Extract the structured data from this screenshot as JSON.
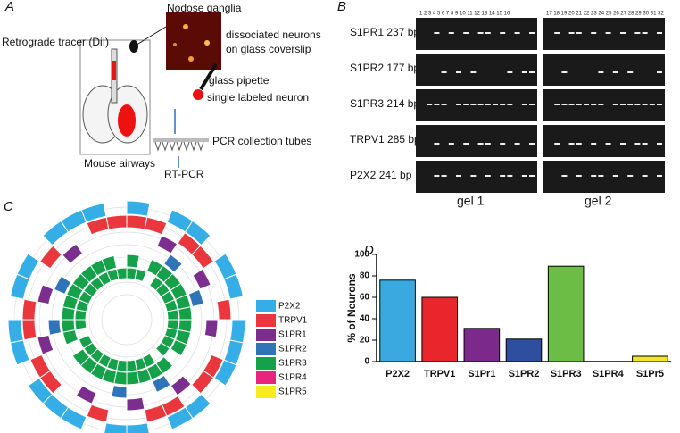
{
  "panel_a": {
    "label": "A",
    "nodose": "Nodose ganglia",
    "dissociated": "dissociated neurons",
    "coverslip": "on glass coverslip",
    "tracer": "Retrograde tracer (DiI)",
    "pipette": "glass pipette",
    "single": "single labeled neuron",
    "tubes": "PCR collection tubes",
    "airways": "Mouse airways",
    "rtpcr": "RT-PCR"
  },
  "panel_b": {
    "label": "B",
    "rows": [
      "S1PR1 237 bp",
      "S1PR2 177 bp",
      "S1PR3 214 bp",
      "TRPV1  285 bp",
      "P2X2   241 bp"
    ],
    "lanes_gel1": "1 2 3 4 5 6 7 8 9 10 11 12 13 14 15 16",
    "lanes_gel2": "17 18 19 20 21 22 23 24 25 26 27 28 29 30 31 32",
    "gel1": "gel 1",
    "gel2": "gel 2"
  },
  "panel_c": {
    "label": "C",
    "legend": [
      {
        "name": "P2X2",
        "color": "#35ade6"
      },
      {
        "name": "TRPV1",
        "color": "#e9373d"
      },
      {
        "name": "S1PR1",
        "color": "#7b2e8e"
      },
      {
        "name": "S1PR2",
        "color": "#2f73b8"
      },
      {
        "name": "S1PR3",
        "color": "#14a14a"
      },
      {
        "name": "S1PR4",
        "color": "#e8247d"
      },
      {
        "name": "S1PR5",
        "color": "#f6ec1e"
      }
    ]
  },
  "chart_data": {
    "type": "bar",
    "panel_label": "D",
    "y_label": "% of Neurons",
    "categories": [
      "P2X2",
      "TRPV1",
      "S1Pr1",
      "S1PR2",
      "S1PR3",
      "S1PR4",
      "S1Pr5"
    ],
    "values": [
      76,
      60,
      31,
      21,
      89,
      0,
      5
    ],
    "colors": [
      "#3aa9e0",
      "#e8262b",
      "#7b2a8c",
      "#2e4f9e",
      "#6cbd45",
      "#e8247d",
      "#f2e524"
    ],
    "ylim": [
      0,
      100
    ],
    "yticks": [
      0,
      20,
      40,
      60,
      80,
      100
    ]
  }
}
